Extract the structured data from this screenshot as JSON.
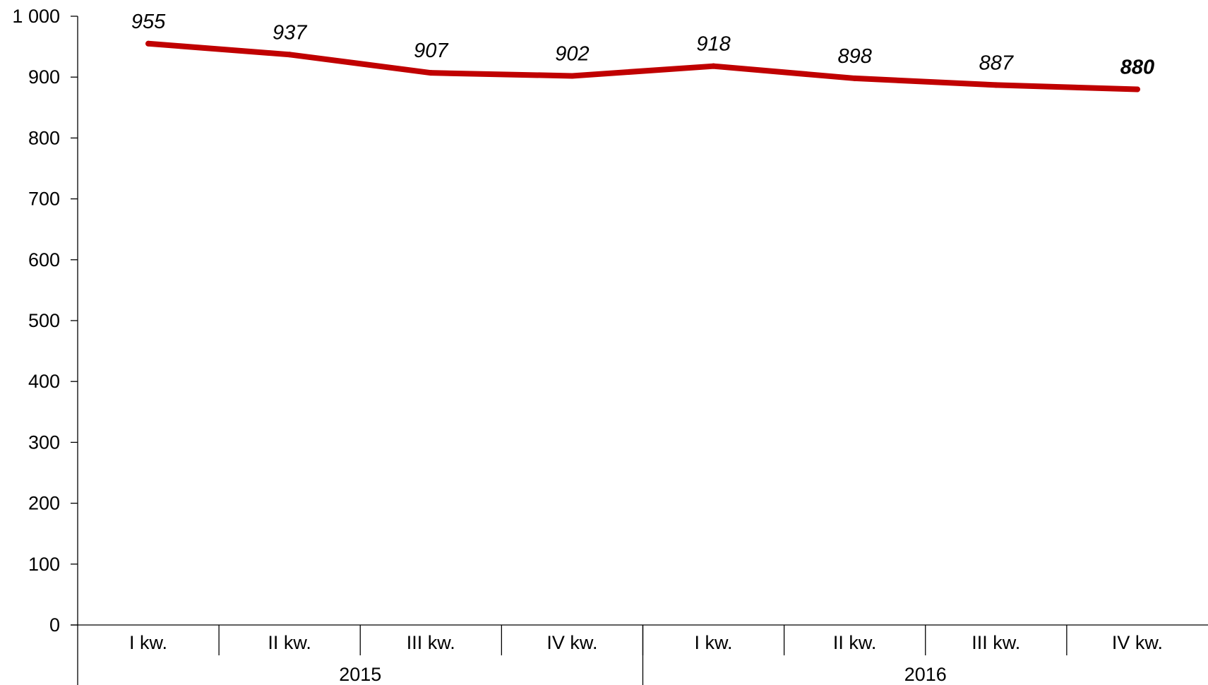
{
  "chart_data": {
    "type": "line",
    "title": "",
    "xlabel": "",
    "ylabel": "",
    "ylim": [
      0,
      1000
    ],
    "yticks": [
      {
        "value": 0,
        "label": "0"
      },
      {
        "value": 100,
        "label": "100"
      },
      {
        "value": 200,
        "label": "200"
      },
      {
        "value": 300,
        "label": "300"
      },
      {
        "value": 400,
        "label": "400"
      },
      {
        "value": 500,
        "label": "500"
      },
      {
        "value": 600,
        "label": "600"
      },
      {
        "value": 700,
        "label": "700"
      },
      {
        "value": 800,
        "label": "800"
      },
      {
        "value": 900,
        "label": "900"
      },
      {
        "value": 1000,
        "label": "1 000"
      }
    ],
    "categories": [
      "I kw.",
      "II kw.",
      "III kw.",
      "IV kw.",
      "I kw.",
      "II kw.",
      "III kw.",
      "IV kw."
    ],
    "groups": [
      {
        "label": "2015",
        "span": 4
      },
      {
        "label": "2016",
        "span": 4
      }
    ],
    "series": [
      {
        "values": [
          955,
          937,
          907,
          902,
          918,
          898,
          887,
          880
        ],
        "labels": [
          "955",
          "937",
          "907",
          "902",
          "918",
          "898",
          "887",
          "880"
        ],
        "color": "#C00000"
      }
    ],
    "grid": false,
    "legend": "none"
  }
}
